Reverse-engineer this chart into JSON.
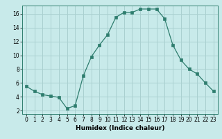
{
  "x": [
    0,
    1,
    2,
    3,
    4,
    5,
    6,
    7,
    8,
    9,
    10,
    11,
    12,
    13,
    14,
    15,
    16,
    17,
    18,
    19,
    20,
    21,
    22,
    23
  ],
  "y": [
    5.5,
    4.8,
    4.3,
    4.1,
    3.9,
    2.3,
    2.7,
    7.0,
    9.8,
    11.5,
    13.0,
    15.5,
    16.2,
    16.2,
    16.7,
    16.7,
    16.7,
    15.3,
    11.5,
    9.3,
    8.0,
    7.3,
    6.0,
    4.8
  ],
  "line_color": "#2e7d6e",
  "marker": "s",
  "marker_size": 2.5,
  "bg_color": "#c8eaea",
  "grid_color": "#aad0d0",
  "xlabel": "Humidex (Indice chaleur)",
  "xlim": [
    -0.5,
    23.5
  ],
  "ylim": [
    1.5,
    17.2
  ],
  "yticks": [
    2,
    4,
    6,
    8,
    10,
    12,
    14,
    16
  ],
  "xticks": [
    0,
    1,
    2,
    3,
    4,
    5,
    6,
    7,
    8,
    9,
    10,
    11,
    12,
    13,
    14,
    15,
    16,
    17,
    18,
    19,
    20,
    21,
    22,
    23
  ],
  "label_fontsize": 6.5,
  "tick_fontsize": 5.5
}
